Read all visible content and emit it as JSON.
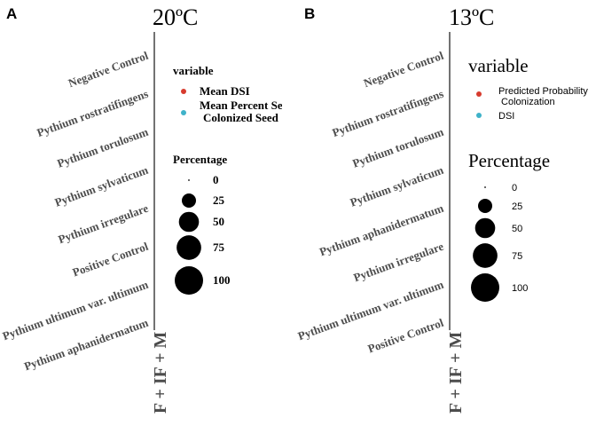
{
  "chart_data": [
    {
      "type": "scatter",
      "panel_label": "A",
      "title": "20ºC",
      "x_categories": [
        "F + IF + M"
      ],
      "y_categories": [
        "Negative Control",
        "Pythium rostratifingens",
        "Pythium torulosum",
        "Pythium sylvaticum",
        "Pythium irregulare",
        "Positive Control",
        "Pythium ultimum var. ultimum",
        "Pythium aphanidermatum"
      ],
      "legend": {
        "color_title": "variable",
        "color_entries": [
          {
            "label_lines": [
              "Mean DSI"
            ],
            "color": "#d73b2e"
          },
          {
            "label_lines": [
              "Mean Percent Se",
              "Colonized Seed"
            ],
            "color": "#3fb2c9"
          }
        ],
        "size_title": "Percentage",
        "size_entries": [
          {
            "label": "0",
            "value": 0
          },
          {
            "label": "25",
            "value": 25
          },
          {
            "label": "50",
            "value": 50
          },
          {
            "label": "75",
            "value": 75
          },
          {
            "label": "100",
            "value": 100
          }
        ]
      },
      "points": []
    },
    {
      "type": "scatter",
      "panel_label": "B",
      "title": "13ºC",
      "x_categories": [
        "F + IF + M"
      ],
      "y_categories": [
        "Negative Control",
        "Pythium rostratifingens",
        "Pythium torulosum",
        "Pythium sylvaticum",
        "Pythium aphanidermatum",
        "Pythium irregulare",
        "Pythium ultimum var. ultimum",
        "Positive Control"
      ],
      "legend": {
        "color_title": "variable",
        "color_entries": [
          {
            "label_lines": [
              "Predicted Probability",
              " Colonization"
            ],
            "color": "#d73b2e"
          },
          {
            "label_lines": [
              "DSI"
            ],
            "color": "#3fb2c9"
          }
        ],
        "size_title": "Percentage",
        "size_entries": [
          {
            "label": "0",
            "value": 0
          },
          {
            "label": "25",
            "value": 25
          },
          {
            "label": "50",
            "value": 50
          },
          {
            "label": "75",
            "value": 75
          },
          {
            "label": "100",
            "value": 100
          }
        ]
      },
      "points": []
    }
  ]
}
